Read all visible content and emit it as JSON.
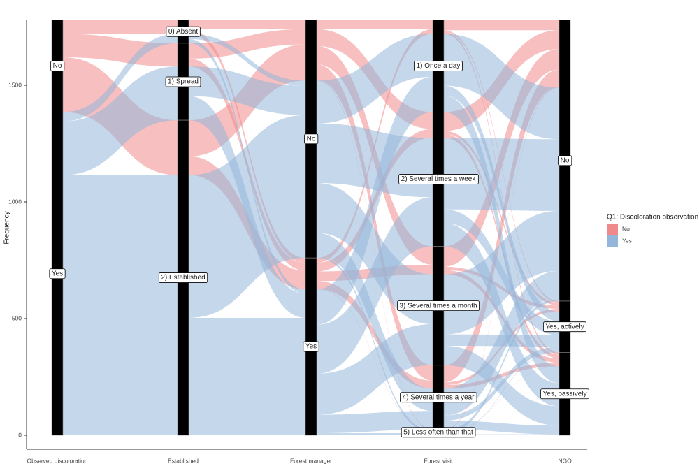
{
  "chart_data": {
    "type": "alluvial",
    "ylabel": "Frequency",
    "ylim": [
      0,
      1780
    ],
    "yticks": [
      0,
      500,
      1000,
      1500
    ],
    "legend_title": "Q1: Discoloration observation",
    "legend_position": "right",
    "series": [
      {
        "name": "No",
        "color": "#f08a8a"
      },
      {
        "name": "Yes",
        "color": "#93b6da"
      }
    ],
    "axes": [
      {
        "name": "Observed discoloration",
        "strata": [
          {
            "label": "No",
            "counts": [
              395,
              0
            ]
          },
          {
            "label": "Yes",
            "counts": [
              0,
              1385
            ]
          }
        ]
      },
      {
        "name": "Established",
        "strata": [
          {
            "label": "0) Absent",
            "counts": [
              60,
              40
            ]
          },
          {
            "label": "1) Spread",
            "counts": [
              100,
              230
            ]
          },
          {
            "label": "2) Established",
            "counts": [
              235,
              1115
            ]
          }
        ]
      },
      {
        "name": "Forest manager",
        "strata": [
          {
            "label": "No",
            "counts": [
              260,
              760
            ]
          },
          {
            "label": "Yes",
            "counts": [
              135,
              625
            ]
          }
        ]
      },
      {
        "name": "Forest visit",
        "strata": [
          {
            "label": "1) Once a day",
            "counts": [
              60,
              335
            ]
          },
          {
            "label": "2) Several times a week",
            "counts": [
              110,
              465
            ]
          },
          {
            "label": "3) Several times a month",
            "counts": [
              120,
              390
            ]
          },
          {
            "label": "4) Several times a year",
            "counts": [
              100,
              175
            ]
          },
          {
            "label": "5) Less often than that",
            "counts": [
              5,
              20
            ]
          }
        ]
      },
      {
        "name": "NGO",
        "strata": [
          {
            "label": "No",
            "counts": [
              290,
              915
            ]
          },
          {
            "label": "Yes, actively",
            "counts": [
              45,
              175
            ]
          },
          {
            "label": "Yes, passively",
            "counts": [
              60,
              295
            ]
          }
        ]
      }
    ]
  }
}
